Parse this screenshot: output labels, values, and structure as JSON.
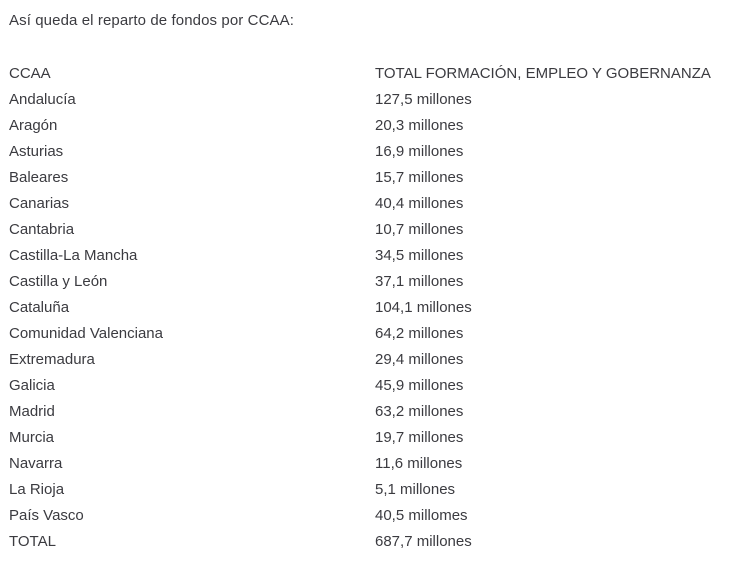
{
  "page": {
    "intro": "Así queda el reparto de fondos por CCAA:"
  },
  "table": {
    "headers": [
      "CCAA",
      "TOTAL FORMACIÓN, EMPLEO Y GOBERNANZA"
    ],
    "rows": [
      {
        "region": "Andalucía",
        "amount": "127,5 millones"
      },
      {
        "region": "Aragón",
        "amount": "20,3 millones"
      },
      {
        "region": "Asturias",
        "amount": "16,9 millones"
      },
      {
        "region": "Baleares",
        "amount": "15,7 millones"
      },
      {
        "region": "Canarias",
        "amount": "40,4 millones"
      },
      {
        "region": "Cantabria",
        "amount": "10,7 millones"
      },
      {
        "region": "Castilla-La Mancha",
        "amount": "34,5 millones"
      },
      {
        "region": "Castilla y León",
        "amount": "37,1 millones"
      },
      {
        "region": "Cataluña",
        "amount": "104,1 millones"
      },
      {
        "region": "Comunidad Valenciana",
        "amount": "64,2 millones"
      },
      {
        "region": "Extremadura",
        "amount": "29,4 millones"
      },
      {
        "region": "Galicia",
        "amount": "45,9 millones"
      },
      {
        "region": "Madrid",
        "amount": "63,2 millones"
      },
      {
        "region": "Murcia",
        "amount": "19,7 millones"
      },
      {
        "region": "Navarra",
        "amount": "11,6 millones"
      },
      {
        "region": "La Rioja",
        "amount": "5,1 millones"
      },
      {
        "region": "País Vasco",
        "amount": "40,5 millomes"
      },
      {
        "region": "TOTAL",
        "amount": "687,7 millones"
      }
    ]
  },
  "colors": {
    "text": "#3b3b40",
    "background": "#ffffff"
  }
}
